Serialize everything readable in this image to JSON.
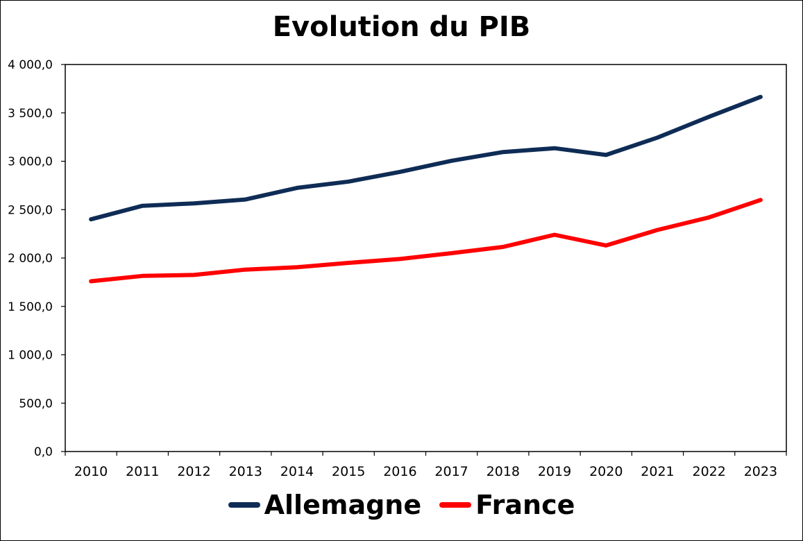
{
  "chart_data": {
    "type": "line",
    "title": "Evolution du PIB",
    "xlabel": "",
    "ylabel": "",
    "categories": [
      "2010",
      "2011",
      "2012",
      "2013",
      "2014",
      "2015",
      "2016",
      "2017",
      "2018",
      "2019",
      "2020",
      "2021",
      "2022",
      "2023"
    ],
    "y_ticks": [
      "0,0",
      "500,0",
      "1 000,0",
      "1 500,0",
      "2 000,0",
      "2 500,0",
      "3 000,0",
      "3 500,0",
      "4 000,0"
    ],
    "ylim": [
      0,
      4000
    ],
    "grid": false,
    "legend_position": "bottom",
    "series": [
      {
        "name": "Allemagne",
        "color": "#0e2c55",
        "values": [
          2400,
          2540,
          2565,
          2605,
          2725,
          2790,
          2890,
          3005,
          3095,
          3135,
          3065,
          3245,
          3460,
          3665
        ]
      },
      {
        "name": "France",
        "color": "#ff0000",
        "values": [
          1760,
          1815,
          1825,
          1880,
          1905,
          1950,
          1990,
          2050,
          2115,
          2240,
          2130,
          2290,
          2420,
          2600
        ]
      }
    ]
  }
}
